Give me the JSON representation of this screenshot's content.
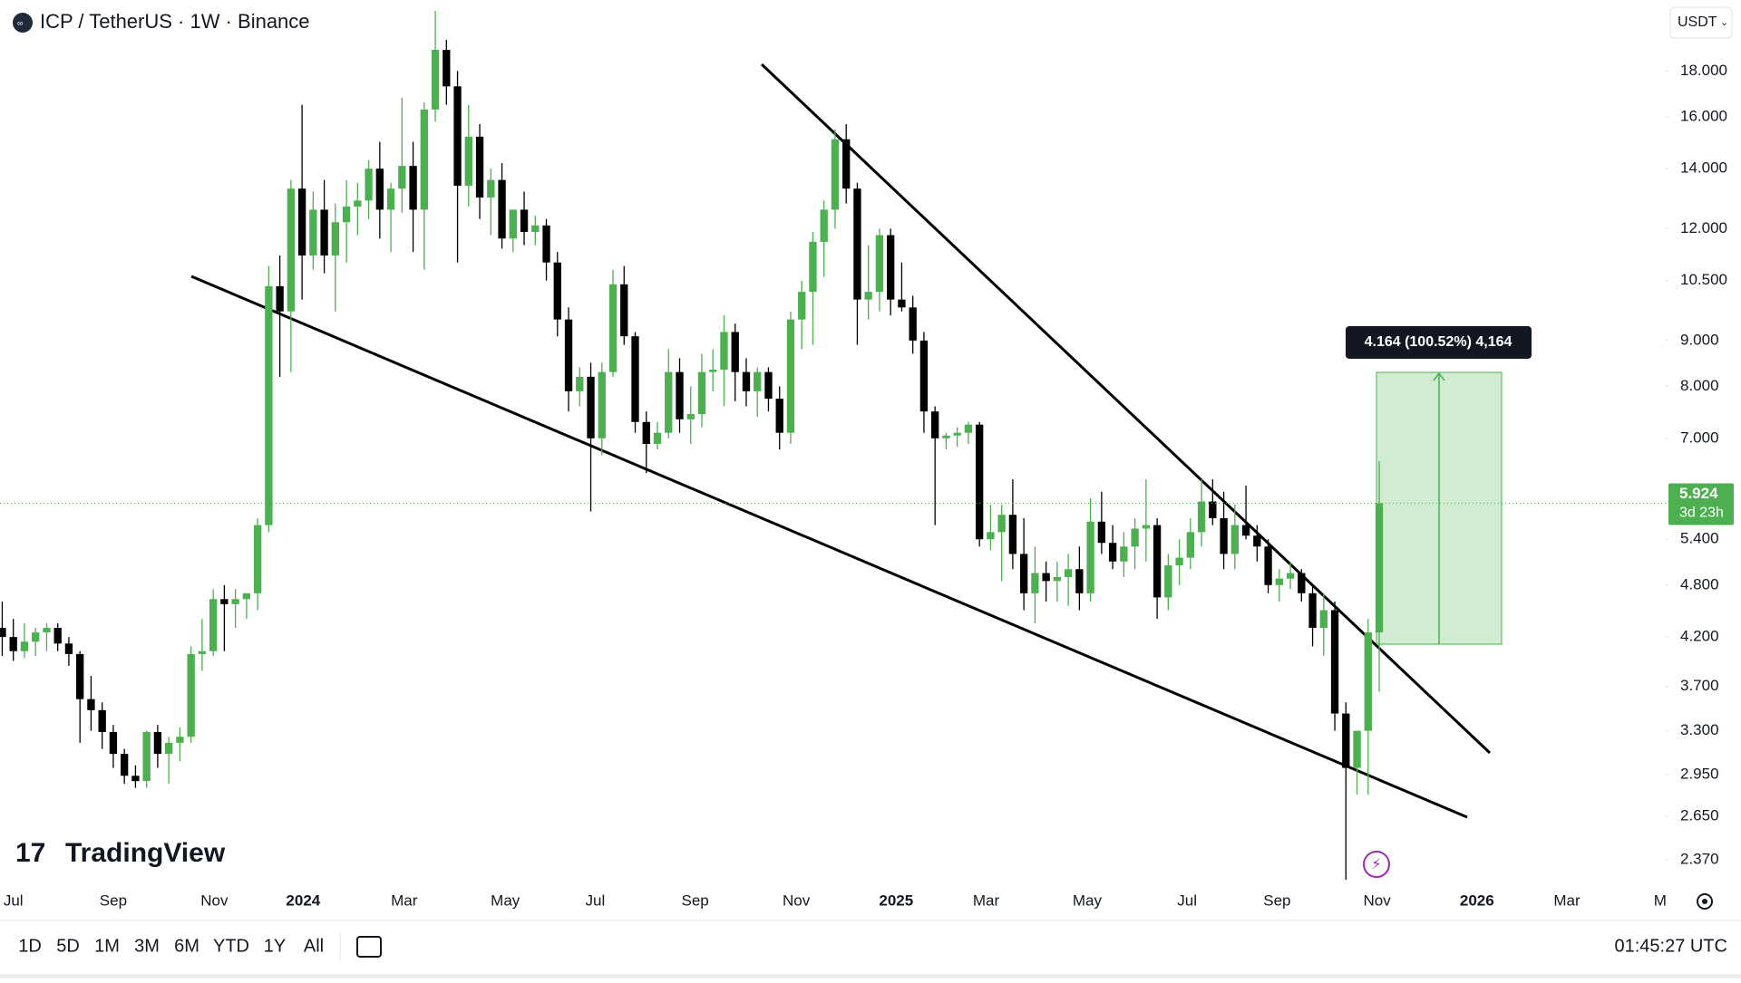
{
  "chart_data": {
    "type": "candlestick",
    "title": "ICP / TetherUS · 1W · Binance",
    "currency": "USDT",
    "brand": "TradingView",
    "log_scale": true,
    "up_color": "#4caf50",
    "down_color": "#000000",
    "ylim": [
      2.24,
      21.6
    ],
    "yticks": [
      {
        "value": 18,
        "label": "18.000"
      },
      {
        "value": 16,
        "label": "16.000"
      },
      {
        "value": 14,
        "label": "14.000"
      },
      {
        "value": 12,
        "label": "12.000"
      },
      {
        "value": 10.5,
        "label": "10.500"
      },
      {
        "value": 9,
        "label": "9.000"
      },
      {
        "value": 8,
        "label": "8.000"
      },
      {
        "value": 7,
        "label": "7.000"
      },
      {
        "value": 5.4,
        "label": "5.400"
      },
      {
        "value": 4.8,
        "label": "4.800"
      },
      {
        "value": 4.2,
        "label": "4.200"
      },
      {
        "value": 3.7,
        "label": "3.700"
      },
      {
        "value": 3.3,
        "label": "3.300"
      },
      {
        "value": 2.95,
        "label": "2.950"
      },
      {
        "value": 2.65,
        "label": "2.650"
      },
      {
        "value": 2.37,
        "label": "2.370"
      }
    ],
    "xlim": [
      -0.2,
      149.8
    ],
    "xticks": [
      {
        "value": 1.0,
        "label": "Jul"
      },
      {
        "value": 10.0,
        "label": "Sep"
      },
      {
        "value": 19.1,
        "label": "Nov"
      },
      {
        "value": 27.1,
        "label": "2024"
      },
      {
        "value": 36.2,
        "label": "Mar"
      },
      {
        "value": 45.3,
        "label": "May"
      },
      {
        "value": 53.4,
        "label": "Jul"
      },
      {
        "value": 62.4,
        "label": "Sep"
      },
      {
        "value": 71.5,
        "label": "Nov"
      },
      {
        "value": 80.5,
        "label": "2025"
      },
      {
        "value": 88.6,
        "label": "Mar"
      },
      {
        "value": 97.7,
        "label": "May"
      },
      {
        "value": 106.7,
        "label": "Jul"
      },
      {
        "value": 114.8,
        "label": "Sep"
      },
      {
        "value": 123.8,
        "label": "Nov"
      },
      {
        "value": 132.8,
        "label": "2026"
      },
      {
        "value": 140.9,
        "label": "Mar"
      },
      {
        "value": 149.3,
        "label": "M"
      }
    ],
    "ohlc": [
      [
        4.3,
        4.6,
        4.0,
        4.2
      ],
      [
        4.2,
        4.4,
        3.95,
        4.05
      ],
      [
        4.05,
        4.35,
        3.98,
        4.15
      ],
      [
        4.15,
        4.3,
        4.0,
        4.25
      ],
      [
        4.25,
        4.35,
        4.05,
        4.3
      ],
      [
        4.3,
        4.35,
        4.05,
        4.13
      ],
      [
        4.13,
        4.2,
        3.9,
        4.02
      ],
      [
        4.02,
        4.05,
        3.2,
        3.58
      ],
      [
        3.58,
        3.8,
        3.3,
        3.48
      ],
      [
        3.48,
        3.55,
        3.15,
        3.29
      ],
      [
        3.29,
        3.35,
        3.0,
        3.11
      ],
      [
        3.11,
        3.15,
        2.88,
        2.94
      ],
      [
        2.94,
        3.02,
        2.85,
        2.9
      ],
      [
        2.9,
        3.3,
        2.85,
        3.29
      ],
      [
        3.29,
        3.35,
        3.0,
        3.11
      ],
      [
        3.11,
        3.25,
        2.88,
        3.2
      ],
      [
        3.2,
        3.33,
        3.05,
        3.25
      ],
      [
        3.25,
        4.1,
        3.2,
        4.02
      ],
      [
        4.02,
        4.4,
        3.85,
        4.05
      ],
      [
        4.05,
        4.75,
        4.0,
        4.63
      ],
      [
        4.63,
        4.8,
        4.05,
        4.57
      ],
      [
        4.57,
        4.75,
        4.3,
        4.63
      ],
      [
        4.63,
        4.7,
        4.4,
        4.7
      ],
      [
        4.7,
        5.7,
        4.5,
        5.6
      ],
      [
        5.6,
        10.9,
        5.5,
        10.35
      ],
      [
        10.35,
        11.2,
        8.2,
        9.7
      ],
      [
        9.7,
        13.6,
        8.3,
        13.3
      ],
      [
        13.3,
        16.5,
        10.0,
        11.2
      ],
      [
        11.2,
        13.2,
        10.8,
        12.6
      ],
      [
        12.6,
        13.6,
        10.7,
        11.2
      ],
      [
        11.2,
        12.8,
        9.7,
        12.2
      ],
      [
        12.2,
        13.6,
        11.0,
        12.7
      ],
      [
        12.7,
        13.5,
        11.8,
        12.9
      ],
      [
        12.9,
        14.3,
        12.3,
        14.0
      ],
      [
        14.0,
        15.0,
        11.7,
        12.6
      ],
      [
        12.6,
        13.5,
        11.3,
        13.3
      ],
      [
        13.3,
        16.8,
        12.5,
        14.1
      ],
      [
        14.1,
        15.0,
        11.3,
        12.6
      ],
      [
        12.6,
        16.6,
        10.8,
        16.3
      ],
      [
        16.3,
        21.0,
        15.8,
        19.0
      ],
      [
        19.0,
        19.5,
        16.5,
        17.3
      ],
      [
        17.3,
        18.0,
        11.0,
        13.4
      ],
      [
        13.4,
        16.5,
        12.7,
        15.2
      ],
      [
        15.2,
        15.7,
        12.3,
        13.0
      ],
      [
        13.0,
        14.0,
        11.8,
        13.6
      ],
      [
        13.6,
        14.2,
        11.4,
        11.7
      ],
      [
        11.7,
        12.6,
        11.3,
        12.6
      ],
      [
        12.6,
        13.2,
        11.5,
        11.9
      ],
      [
        11.9,
        12.4,
        11.5,
        12.1
      ],
      [
        12.1,
        12.3,
        10.5,
        11.0
      ],
      [
        11.0,
        11.3,
        9.1,
        9.5
      ],
      [
        9.5,
        9.8,
        7.5,
        7.9
      ],
      [
        7.9,
        8.4,
        7.6,
        8.2
      ],
      [
        8.2,
        8.5,
        5.8,
        7.0
      ],
      [
        7.0,
        8.5,
        6.7,
        8.3
      ],
      [
        8.3,
        10.8,
        8.2,
        10.4
      ],
      [
        10.4,
        10.9,
        8.9,
        9.1
      ],
      [
        9.1,
        9.2,
        7.1,
        7.3
      ],
      [
        7.3,
        7.5,
        6.4,
        6.9
      ],
      [
        6.9,
        7.3,
        6.8,
        7.1
      ],
      [
        7.1,
        8.8,
        7.0,
        8.3
      ],
      [
        8.3,
        8.6,
        7.1,
        7.35
      ],
      [
        7.35,
        8.0,
        6.9,
        7.45
      ],
      [
        7.45,
        8.7,
        7.2,
        8.3
      ],
      [
        8.3,
        8.8,
        7.9,
        8.35
      ],
      [
        8.35,
        9.6,
        7.6,
        9.2
      ],
      [
        9.2,
        9.4,
        7.7,
        8.3
      ],
      [
        8.3,
        8.6,
        7.6,
        7.9
      ],
      [
        7.9,
        8.4,
        7.4,
        8.3
      ],
      [
        8.3,
        8.4,
        7.5,
        7.75
      ],
      [
        7.75,
        8.0,
        6.8,
        7.1
      ],
      [
        7.1,
        9.7,
        6.9,
        9.5
      ],
      [
        9.5,
        10.5,
        8.8,
        10.2
      ],
      [
        10.2,
        11.9,
        8.9,
        11.6
      ],
      [
        11.6,
        12.9,
        10.6,
        12.6
      ],
      [
        12.6,
        15.5,
        12.0,
        15.1
      ],
      [
        15.1,
        15.7,
        12.8,
        13.3
      ],
      [
        13.3,
        13.5,
        8.9,
        10.0
      ],
      [
        10.0,
        11.5,
        9.5,
        10.2
      ],
      [
        10.2,
        12.0,
        9.7,
        11.8
      ],
      [
        11.8,
        12.0,
        9.6,
        10.0
      ],
      [
        10.0,
        11.0,
        9.7,
        9.8
      ],
      [
        9.8,
        10.1,
        8.7,
        9.0
      ],
      [
        9.0,
        9.2,
        7.1,
        7.5
      ],
      [
        7.5,
        7.6,
        5.6,
        7.0
      ],
      [
        7.0,
        7.1,
        6.8,
        7.05
      ],
      [
        7.05,
        7.2,
        6.85,
        7.1
      ],
      [
        7.1,
        7.3,
        6.9,
        7.25
      ],
      [
        7.25,
        7.3,
        5.3,
        5.4
      ],
      [
        5.4,
        5.9,
        5.25,
        5.5
      ],
      [
        5.5,
        5.9,
        4.85,
        5.75
      ],
      [
        5.75,
        6.3,
        5.0,
        5.2
      ],
      [
        5.2,
        5.7,
        4.5,
        4.7
      ],
      [
        4.7,
        5.3,
        4.35,
        4.95
      ],
      [
        4.95,
        5.1,
        4.6,
        4.85
      ],
      [
        4.85,
        5.1,
        4.6,
        4.9
      ],
      [
        4.9,
        5.2,
        4.55,
        5.0
      ],
      [
        5.0,
        5.3,
        4.5,
        4.7
      ],
      [
        4.7,
        6.0,
        4.6,
        5.65
      ],
      [
        5.65,
        6.1,
        5.2,
        5.35
      ],
      [
        5.35,
        5.6,
        5.0,
        5.1
      ],
      [
        5.1,
        5.5,
        4.9,
        5.3
      ],
      [
        5.3,
        5.7,
        5.0,
        5.55
      ],
      [
        5.55,
        6.3,
        5.1,
        5.6
      ],
      [
        5.6,
        5.7,
        4.4,
        4.65
      ],
      [
        4.65,
        5.2,
        4.5,
        5.05
      ],
      [
        5.05,
        5.4,
        4.8,
        5.15
      ],
      [
        5.15,
        5.7,
        5.0,
        5.5
      ],
      [
        5.5,
        6.3,
        5.3,
        5.95
      ],
      [
        5.95,
        6.3,
        5.6,
        5.7
      ],
      [
        5.7,
        6.1,
        5.0,
        5.2
      ],
      [
        5.2,
        5.9,
        5.0,
        5.6
      ],
      [
        5.6,
        6.2,
        5.4,
        5.45
      ],
      [
        5.45,
        5.6,
        5.1,
        5.3
      ],
      [
        5.3,
        5.4,
        4.7,
        4.8
      ],
      [
        4.8,
        5.0,
        4.6,
        4.88
      ],
      [
        4.88,
        5.1,
        4.75,
        4.95
      ],
      [
        4.95,
        5.0,
        4.6,
        4.7
      ],
      [
        4.7,
        4.8,
        4.1,
        4.3
      ],
      [
        4.3,
        4.7,
        4.0,
        4.5
      ],
      [
        4.5,
        4.6,
        3.3,
        3.45
      ],
      [
        3.45,
        3.55,
        2.25,
        3.0
      ],
      [
        3.0,
        3.3,
        2.8,
        3.3
      ],
      [
        3.3,
        4.4,
        2.8,
        4.25
      ],
      [
        4.25,
        6.6,
        3.65,
        5.924
      ]
    ],
    "last_price": 5.924,
    "countdown": "3d 23h",
    "measure_label": "4.164 (100.52%) 4,164",
    "ranges": [
      "1D",
      "5D",
      "1M",
      "3M",
      "6M",
      "YTD",
      "1Y",
      "All"
    ],
    "clock": "01:45:27 UTC"
  }
}
